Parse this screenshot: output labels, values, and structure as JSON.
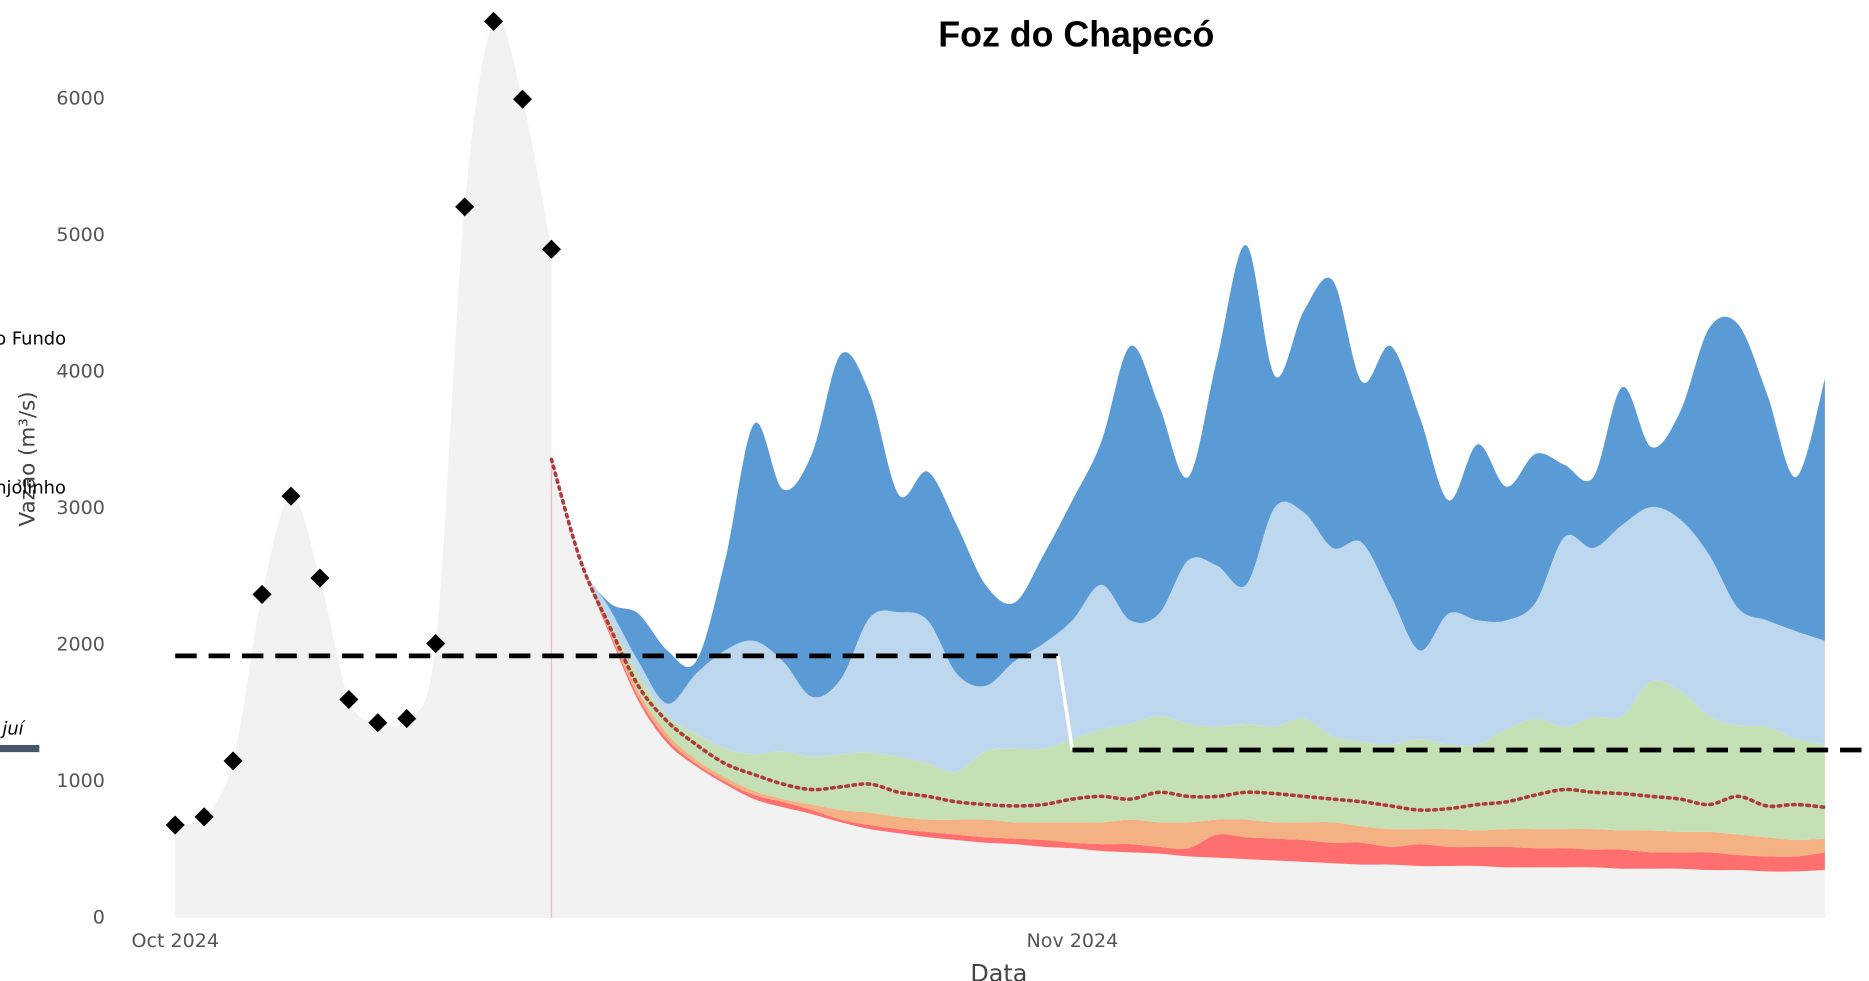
{
  "chart_data": {
    "type": "area",
    "title": "Foz do Chapecó",
    "xlabel": "Data",
    "ylabel": "Vazão (m³/s)",
    "annotations": [
      "o Fundo",
      "njolinho",
      "juí"
    ],
    "xlim": [
      0,
      57
    ],
    "xticks": [
      {
        "value": 0,
        "label": "Oct 2024"
      },
      {
        "value": 31,
        "label": "Nov 2024"
      }
    ],
    "ylim": [
      0,
      6700
    ],
    "yticks": [
      0,
      1000,
      2000,
      3000,
      4000,
      5000,
      6000
    ],
    "grid": false,
    "observed": {
      "color": "#000000",
      "fill": "#f2f2f2",
      "x": [
        0,
        1,
        2,
        3,
        4,
        5,
        6,
        7,
        8,
        9,
        10,
        11,
        12,
        13
      ],
      "values": [
        680,
        740,
        1150,
        2370,
        3090,
        2490,
        1600,
        1430,
        1460,
        2010,
        5210,
        6570,
        6000,
        4900
      ]
    },
    "forecast": {
      "x": [
        13,
        14,
        15,
        16,
        17,
        18,
        19,
        20,
        21,
        22,
        23,
        24,
        25,
        26,
        27,
        28,
        29,
        30,
        31,
        32,
        33,
        34,
        35,
        36,
        37,
        38,
        39,
        40,
        41,
        42,
        43,
        44,
        45,
        46,
        47,
        48,
        49,
        50,
        51,
        52,
        53,
        54,
        55,
        56,
        57
      ],
      "series": [
        {
          "color": "#f2f2f2",
          "values": [
            3360,
            2620,
            2080,
            1590,
            1280,
            1110,
            980,
            870,
            810,
            760,
            700,
            650,
            620,
            590,
            570,
            550,
            540,
            520,
            510,
            490,
            480,
            470,
            450,
            440,
            430,
            420,
            410,
            400,
            390,
            390,
            380,
            380,
            380,
            370,
            370,
            370,
            370,
            360,
            360,
            360,
            350,
            350,
            340,
            340,
            350
          ]
        },
        {
          "color": "#ff6f6f",
          "values": [
            3360,
            2620,
            2100,
            1620,
            1310,
            1130,
            1000,
            900,
            850,
            790,
            720,
            680,
            650,
            630,
            610,
            590,
            580,
            570,
            550,
            540,
            540,
            520,
            510,
            610,
            590,
            580,
            570,
            550,
            550,
            520,
            540,
            520,
            520,
            520,
            510,
            510,
            500,
            500,
            480,
            480,
            480,
            460,
            450,
            450,
            480
          ]
        },
        {
          "color": "#f4b183",
          "values": [
            3360,
            2620,
            2140,
            1660,
            1350,
            1160,
            1030,
            930,
            870,
            830,
            790,
            770,
            740,
            720,
            720,
            720,
            700,
            700,
            700,
            700,
            720,
            700,
            700,
            720,
            720,
            700,
            700,
            700,
            670,
            650,
            650,
            650,
            640,
            650,
            650,
            650,
            650,
            640,
            640,
            630,
            630,
            610,
            590,
            570,
            580
          ]
        },
        {
          "color": "#c5e0b4",
          "values": [
            3360,
            2620,
            2180,
            1790,
            1480,
            1350,
            1240,
            1200,
            1220,
            1180,
            1200,
            1210,
            1180,
            1130,
            1070,
            1220,
            1240,
            1240,
            1310,
            1380,
            1420,
            1480,
            1420,
            1400,
            1420,
            1400,
            1460,
            1330,
            1290,
            1270,
            1310,
            1270,
            1270,
            1380,
            1460,
            1400,
            1470,
            1480,
            1730,
            1660,
            1480,
            1410,
            1400,
            1310,
            1270
          ]
        },
        {
          "color": "#bdd7ee",
          "values": [
            3360,
            2620,
            2270,
            1880,
            1570,
            1790,
            1960,
            2030,
            1880,
            1620,
            1750,
            2200,
            2240,
            2180,
            1790,
            1700,
            1880,
            2010,
            2180,
            2440,
            2180,
            2230,
            2620,
            2580,
            2440,
            3010,
            2970,
            2710,
            2750,
            2360,
            1960,
            2230,
            2180,
            2180,
            2310,
            2790,
            2710,
            2880,
            3010,
            2920,
            2660,
            2270,
            2180,
            2100,
            2030
          ]
        },
        {
          "color": "#5b9bd5",
          "values": [
            3360,
            2620,
            2310,
            2230,
            1960,
            1880,
            2620,
            3620,
            3140,
            3400,
            4130,
            3840,
            3100,
            3270,
            2880,
            2440,
            2310,
            2660,
            3060,
            3490,
            4190,
            3750,
            3230,
            4100,
            4930,
            3970,
            4450,
            4670,
            3930,
            4190,
            3670,
            3060,
            3470,
            3160,
            3400,
            3320,
            3230,
            3890,
            3450,
            3710,
            4320,
            4350,
            3840,
            3230,
            3950
          ]
        }
      ],
      "median": {
        "color": "#b03a3a",
        "values": [
          3360,
          2620,
          2140,
          1700,
          1440,
          1270,
          1130,
          1050,
          980,
          940,
          960,
          980,
          920,
          890,
          850,
          830,
          820,
          830,
          870,
          890,
          870,
          920,
          890,
          890,
          920,
          910,
          890,
          870,
          850,
          820,
          790,
          800,
          830,
          850,
          900,
          940,
          920,
          910,
          890,
          870,
          830,
          890,
          820,
          830,
          810
        ]
      }
    },
    "threshold": {
      "color": "#000000",
      "x": [
        0,
        30.5,
        31,
        58.5
      ],
      "values": [
        1920,
        1920,
        1230,
        1230
      ]
    }
  }
}
